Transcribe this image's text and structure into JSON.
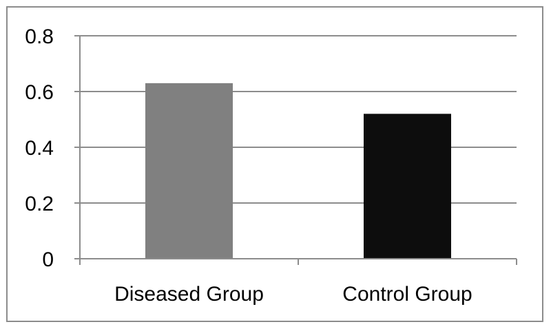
{
  "chart_data": {
    "type": "bar",
    "title": "",
    "xlabel": "",
    "ylabel": "",
    "categories": [
      "Diseased Group",
      "Control Group"
    ],
    "values": [
      0.63,
      0.52
    ],
    "bar_colors": [
      "#808080",
      "#0d0d0d"
    ],
    "ylim": [
      0,
      0.8
    ],
    "yticks": [
      0,
      0.2,
      0.4,
      0.6,
      0.8
    ],
    "ytick_labels": [
      "0",
      "0.2",
      "0.4",
      "0.6",
      "0.8"
    ],
    "grid": true,
    "gridline_color": "#8c8c8c",
    "axis_color": "#8c8c8c",
    "legend": "none"
  }
}
